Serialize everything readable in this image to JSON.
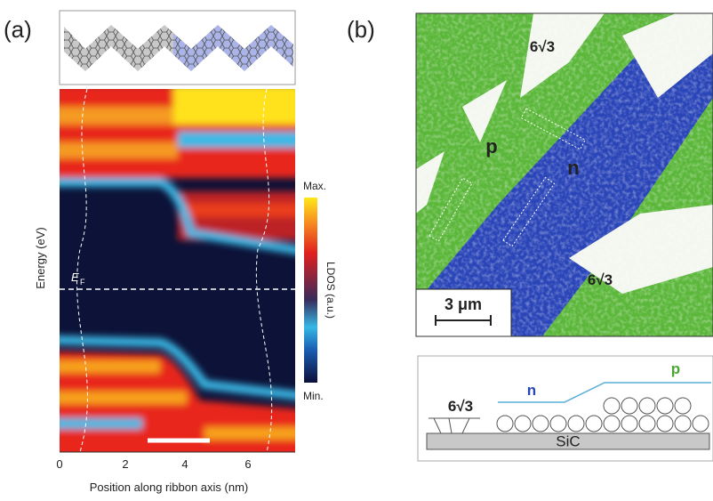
{
  "panel_a": {
    "label": "(a)",
    "y_axis_label": "Energy (eV)",
    "x_axis_label": "Position along ribbon axis (nm)",
    "x_ticks": [
      "0",
      "2",
      "4",
      "6"
    ],
    "fermi_label": "E",
    "fermi_subscript": "F",
    "colorbar": {
      "max": "Max.",
      "min": "Min.",
      "label": "LDOS (a.u.)"
    }
  },
  "panel_b": {
    "label": "(b)",
    "regions": [
      "6√3",
      "p",
      "n",
      "6√3"
    ],
    "scale_bar": "3 μm",
    "schematic": {
      "left": "6√3",
      "n": "n",
      "p": "p",
      "substrate": "SiC"
    }
  }
}
